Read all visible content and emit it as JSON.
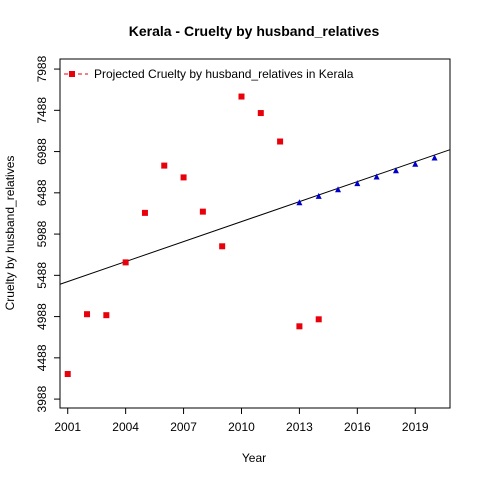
{
  "chart_data": {
    "type": "scatter",
    "title": "Kerala  -  Cruelty by husband_relatives",
    "xlabel": "Year",
    "ylabel": "Cruelty by husband_relatives",
    "xlim": [
      2000.6,
      2020.8
    ],
    "ylim": [
      3880,
      8110
    ],
    "xticks": [
      2001,
      2004,
      2007,
      2010,
      2013,
      2016,
      2019
    ],
    "yticks": [
      3988,
      4488,
      4988,
      5488,
      5988,
      6488,
      6988,
      7488,
      7988
    ],
    "legend": {
      "position": "top-left",
      "label": "Projected  Cruelty by husband_relatives  in  Kerala"
    },
    "series": [
      {
        "marker": "square",
        "color": "#e8000b",
        "x": [
          2001,
          2002,
          2003,
          2004,
          2005,
          2006,
          2007,
          2008,
          2009,
          2010,
          2011,
          2012,
          2013,
          2014
        ],
        "y": [
          4292,
          5017,
          5005,
          5645,
          6245,
          6818,
          6675,
          6260,
          5840,
          7655,
          7455,
          7110,
          4870,
          4955
        ]
      },
      {
        "marker": "triangle",
        "color": "#0000cc",
        "x": [
          2013,
          2014,
          2015,
          2016,
          2017,
          2018,
          2019,
          2020
        ],
        "y": [
          6368,
          6445,
          6525,
          6600,
          6680,
          6755,
          6835,
          6910
        ]
      }
    ],
    "trendline": {
      "color": "#000000",
      "x": [
        2000.6,
        2020.8
      ],
      "y": [
        5380,
        7011
      ]
    }
  }
}
